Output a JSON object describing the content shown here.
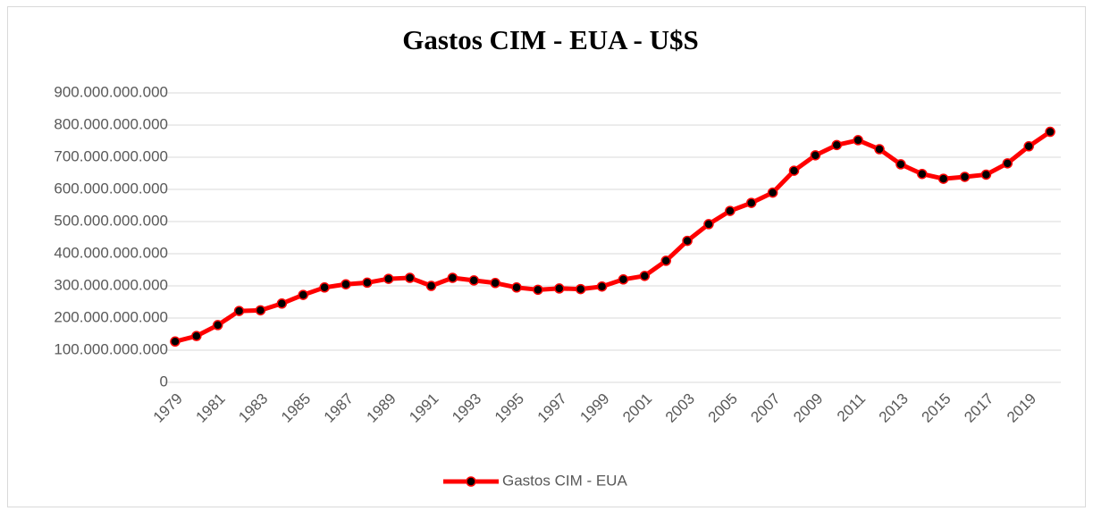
{
  "chart_data": {
    "type": "line",
    "title": "Gastos CIM - EUA - U$S",
    "categories": [
      "1979",
      null,
      "1981",
      null,
      "1983",
      null,
      "1985",
      null,
      "1987",
      null,
      "1989",
      null,
      "1991",
      null,
      "1993",
      null,
      "1995",
      null,
      "1997",
      null,
      "1999",
      null,
      "2001",
      null,
      "2003",
      null,
      "2005",
      null,
      "2007",
      null,
      "2009",
      null,
      "2011",
      null,
      "2013",
      null,
      "2015",
      null,
      "2017",
      null,
      "2019",
      null
    ],
    "series": [
      {
        "name": "Gastos CIM - EUA",
        "color": "#ff0000",
        "marker_color": "#000000",
        "values": [
          127000000000,
          144000000000,
          178000000000,
          222000000000,
          224000000000,
          245000000000,
          272000000000,
          295000000000,
          305000000000,
          310000000000,
          322000000000,
          325000000000,
          300000000000,
          325000000000,
          317000000000,
          309000000000,
          295000000000,
          288000000000,
          292000000000,
          290000000000,
          298000000000,
          320000000000,
          331000000000,
          378000000000,
          440000000000,
          492000000000,
          533000000000,
          558000000000,
          590000000000,
          658000000000,
          706000000000,
          738000000000,
          753000000000,
          725000000000,
          678000000000,
          648000000000,
          633000000000,
          639000000000,
          646000000000,
          681000000000,
          734000000000,
          779000000000
        ]
      }
    ],
    "ylim": [
      0,
      900000000000
    ],
    "yticks": [
      0,
      {
        "value": 100000000000,
        "label": "100.000.000.000"
      },
      {
        "value": 200000000000,
        "label": "200.000.000.000"
      },
      {
        "value": 300000000000,
        "label": "300.000.000.000"
      },
      {
        "value": 400000000000,
        "label": "400.000.000.000"
      },
      {
        "value": 500000000000,
        "label": "500.000.000.000"
      },
      {
        "value": 600000000000,
        "label": "600.000.000.000"
      },
      {
        "value": 700000000000,
        "label": "700.000.000.000"
      },
      {
        "value": 800000000000,
        "label": "800.000.000.000"
      },
      {
        "value": 900000000000,
        "label": "900.000.000.000"
      }
    ],
    "grid": true,
    "legend": "bottom"
  }
}
